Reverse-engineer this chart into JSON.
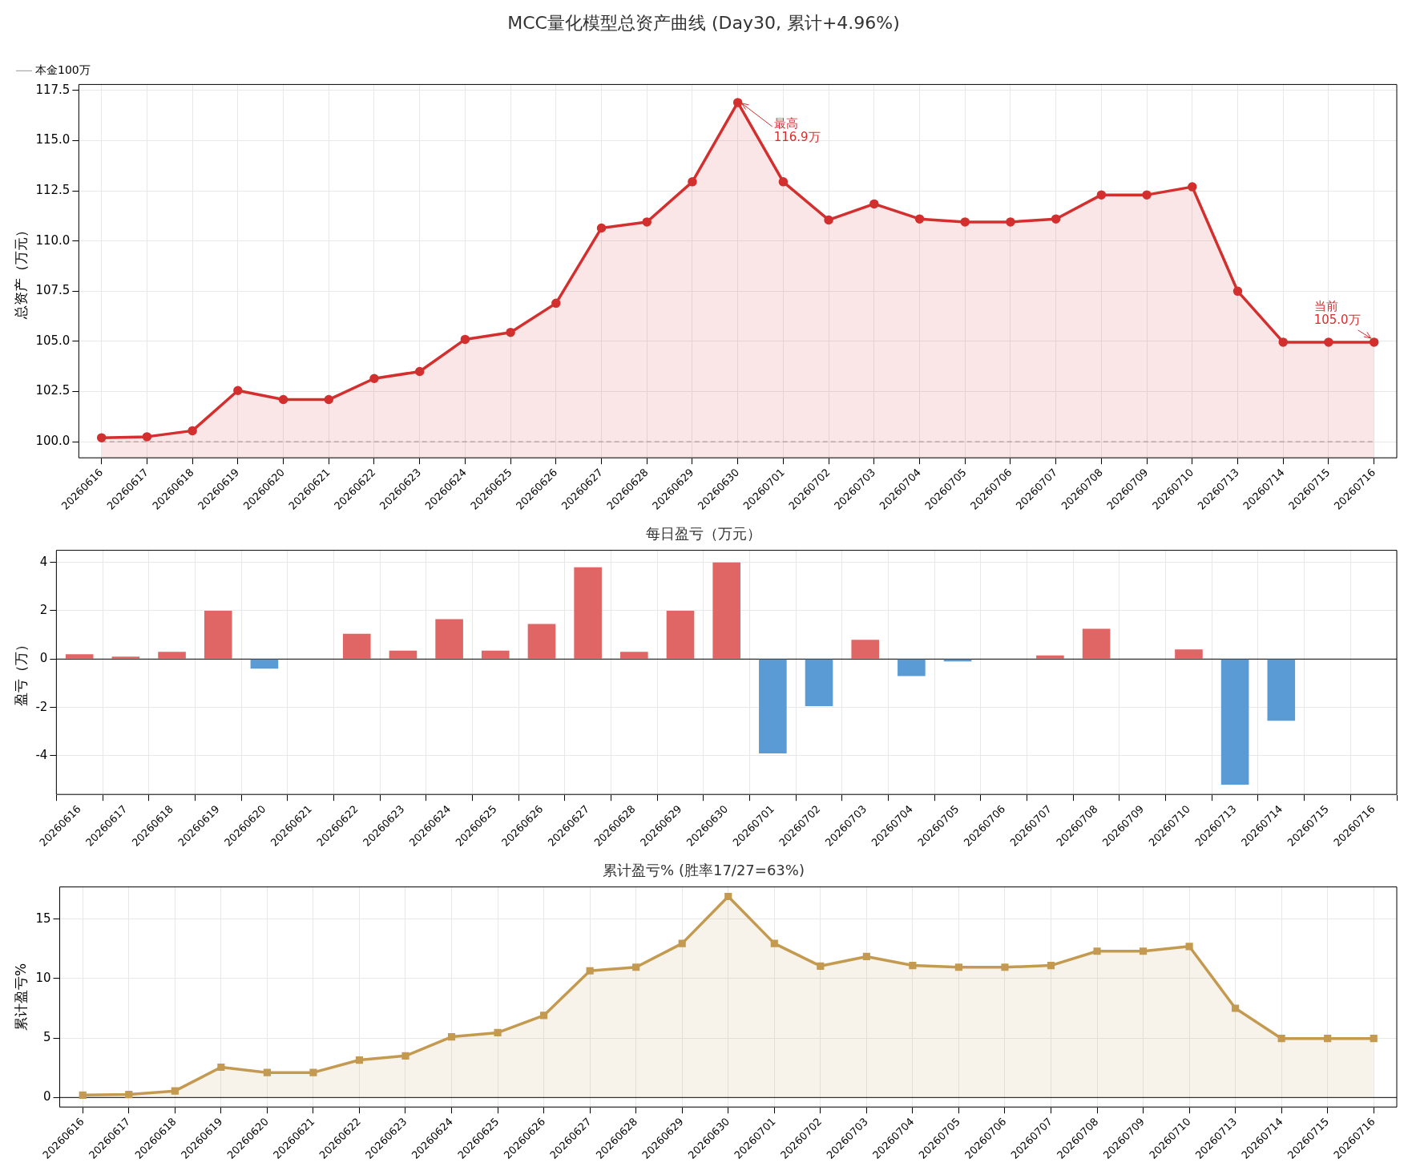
{
  "chart_data": [
    {
      "type": "area",
      "title": "MCC量化模型总资产曲线 (Day30, 累计+4.96%)",
      "ylabel": "总资产（万元）",
      "categories": [
        "20260616",
        "20260617",
        "20260618",
        "20260619",
        "20260620",
        "20260621",
        "20260622",
        "20260623",
        "20260624",
        "20260625",
        "20260626",
        "20260627",
        "20260628",
        "20260629",
        "20260630",
        "20260701",
        "20260702",
        "20260703",
        "20260704",
        "20260705",
        "20260706",
        "20260707",
        "20260708",
        "20260709",
        "20260710",
        "20260713",
        "20260714",
        "20260715",
        "20260716"
      ],
      "series": [
        {
          "color": "#d32f2f",
          "values": [
            100.2,
            100.25,
            100.55,
            102.55,
            102.1,
            102.1,
            103.15,
            103.5,
            105.1,
            105.45,
            106.9,
            110.65,
            110.95,
            112.95,
            116.9,
            112.95,
            111.05,
            111.85,
            111.1,
            110.95,
            110.95,
            111.1,
            112.3,
            112.3,
            112.7,
            107.5,
            104.96,
            104.96,
            104.96
          ]
        },
        {
          "type": "line",
          "name": "本金100万",
          "color": "#aaaaaa",
          "line_style": "dashed",
          "marker": "none",
          "values": [
            100,
            100,
            100,
            100,
            100,
            100,
            100,
            100,
            100,
            100,
            100,
            100,
            100,
            100,
            100,
            100,
            100,
            100,
            100,
            100,
            100,
            100,
            100,
            100,
            100,
            100,
            100,
            100,
            100
          ]
        }
      ],
      "annotations": [
        {
          "text": "最高\n116.9万",
          "x": "20260630",
          "y": 116.9
        },
        {
          "text": "当前\n105.0万",
          "x": "20260716",
          "y": 105.0
        }
      ],
      "ylim": [
        99.2,
        117.8
      ],
      "yticks": [
        {
          "value": 100,
          "label": "100.0"
        },
        {
          "value": 102.5,
          "label": "102.5"
        },
        {
          "value": 105,
          "label": "105.0"
        },
        {
          "value": 107.5,
          "label": "107.5"
        },
        {
          "value": 110,
          "label": "110.0"
        },
        {
          "value": 112.5,
          "label": "112.5"
        },
        {
          "value": 115,
          "label": "115.0"
        },
        {
          "value": 117.5,
          "label": "117.5"
        }
      ],
      "grid": true,
      "legend": "top left",
      "marker": "circle"
    },
    {
      "type": "bar",
      "title": "每日盈亏（万元）",
      "ylabel": "盈亏（万）",
      "categories": [
        "20260616",
        "20260617",
        "20260618",
        "20260619",
        "20260620",
        "20260621",
        "20260622",
        "20260623",
        "20260624",
        "20260625",
        "20260626",
        "20260627",
        "20260628",
        "20260629",
        "20260630",
        "20260701",
        "20260702",
        "20260703",
        "20260704",
        "20260705",
        "20260706",
        "20260707",
        "20260708",
        "20260709",
        "20260710",
        "20260713",
        "20260714",
        "20260715",
        "20260716"
      ],
      "values": [
        0.2,
        0.1,
        0.3,
        2.0,
        -0.4,
        0,
        1.05,
        0.35,
        1.65,
        0.35,
        1.45,
        3.8,
        0.3,
        2.0,
        4.0,
        -3.9,
        -1.95,
        0.8,
        -0.7,
        -0.1,
        0,
        0.15,
        1.25,
        0,
        0.4,
        -5.2,
        -2.55,
        0,
        0
      ],
      "colors": [
        "#e06666",
        "#e06666",
        "#e06666",
        "#e06666",
        "#5b9bd5",
        "#e06666",
        "#e06666",
        "#e06666",
        "#e06666",
        "#e06666",
        "#e06666",
        "#e06666",
        "#e06666",
        "#e06666",
        "#e06666",
        "#5b9bd5",
        "#5b9bd5",
        "#e06666",
        "#5b9bd5",
        "#5b9bd5",
        "#e06666",
        "#e06666",
        "#e06666",
        "#e06666",
        "#e06666",
        "#5b9bd5",
        "#5b9bd5",
        "#e06666",
        "#e06666"
      ],
      "ref_lines": [
        {
          "axis": "y",
          "value": 0,
          "color": "#000000"
        }
      ],
      "ylim": [
        -5.6,
        4.5
      ],
      "yticks": [
        -4,
        -2,
        0,
        2,
        4
      ],
      "grid": true
    },
    {
      "type": "area",
      "title": "累计盈亏% (胜率17/27=63%)",
      "ylabel": "累计盈亏%",
      "categories": [
        "20260616",
        "20260617",
        "20260618",
        "20260619",
        "20260620",
        "20260621",
        "20260622",
        "20260623",
        "20260624",
        "20260625",
        "20260626",
        "20260627",
        "20260628",
        "20260629",
        "20260630",
        "20260701",
        "20260702",
        "20260703",
        "20260704",
        "20260705",
        "20260706",
        "20260707",
        "20260708",
        "20260709",
        "20260710",
        "20260713",
        "20260714",
        "20260715",
        "20260716"
      ],
      "series": [
        {
          "color": "#c49a50",
          "values": [
            0.2,
            0.25,
            0.55,
            2.55,
            2.1,
            2.1,
            3.15,
            3.5,
            5.1,
            5.45,
            6.9,
            10.65,
            10.95,
            12.95,
            16.9,
            12.95,
            11.05,
            11.85,
            11.1,
            10.95,
            10.95,
            11.1,
            12.3,
            12.3,
            12.7,
            7.5,
            4.96,
            4.96,
            4.96
          ]
        }
      ],
      "ref_lines": [
        {
          "axis": "y",
          "value": 0,
          "color": "#000000"
        }
      ],
      "ylim": [
        -0.8,
        17.7
      ],
      "yticks": [
        0,
        5,
        10,
        15
      ],
      "grid": true,
      "marker": "square"
    }
  ]
}
